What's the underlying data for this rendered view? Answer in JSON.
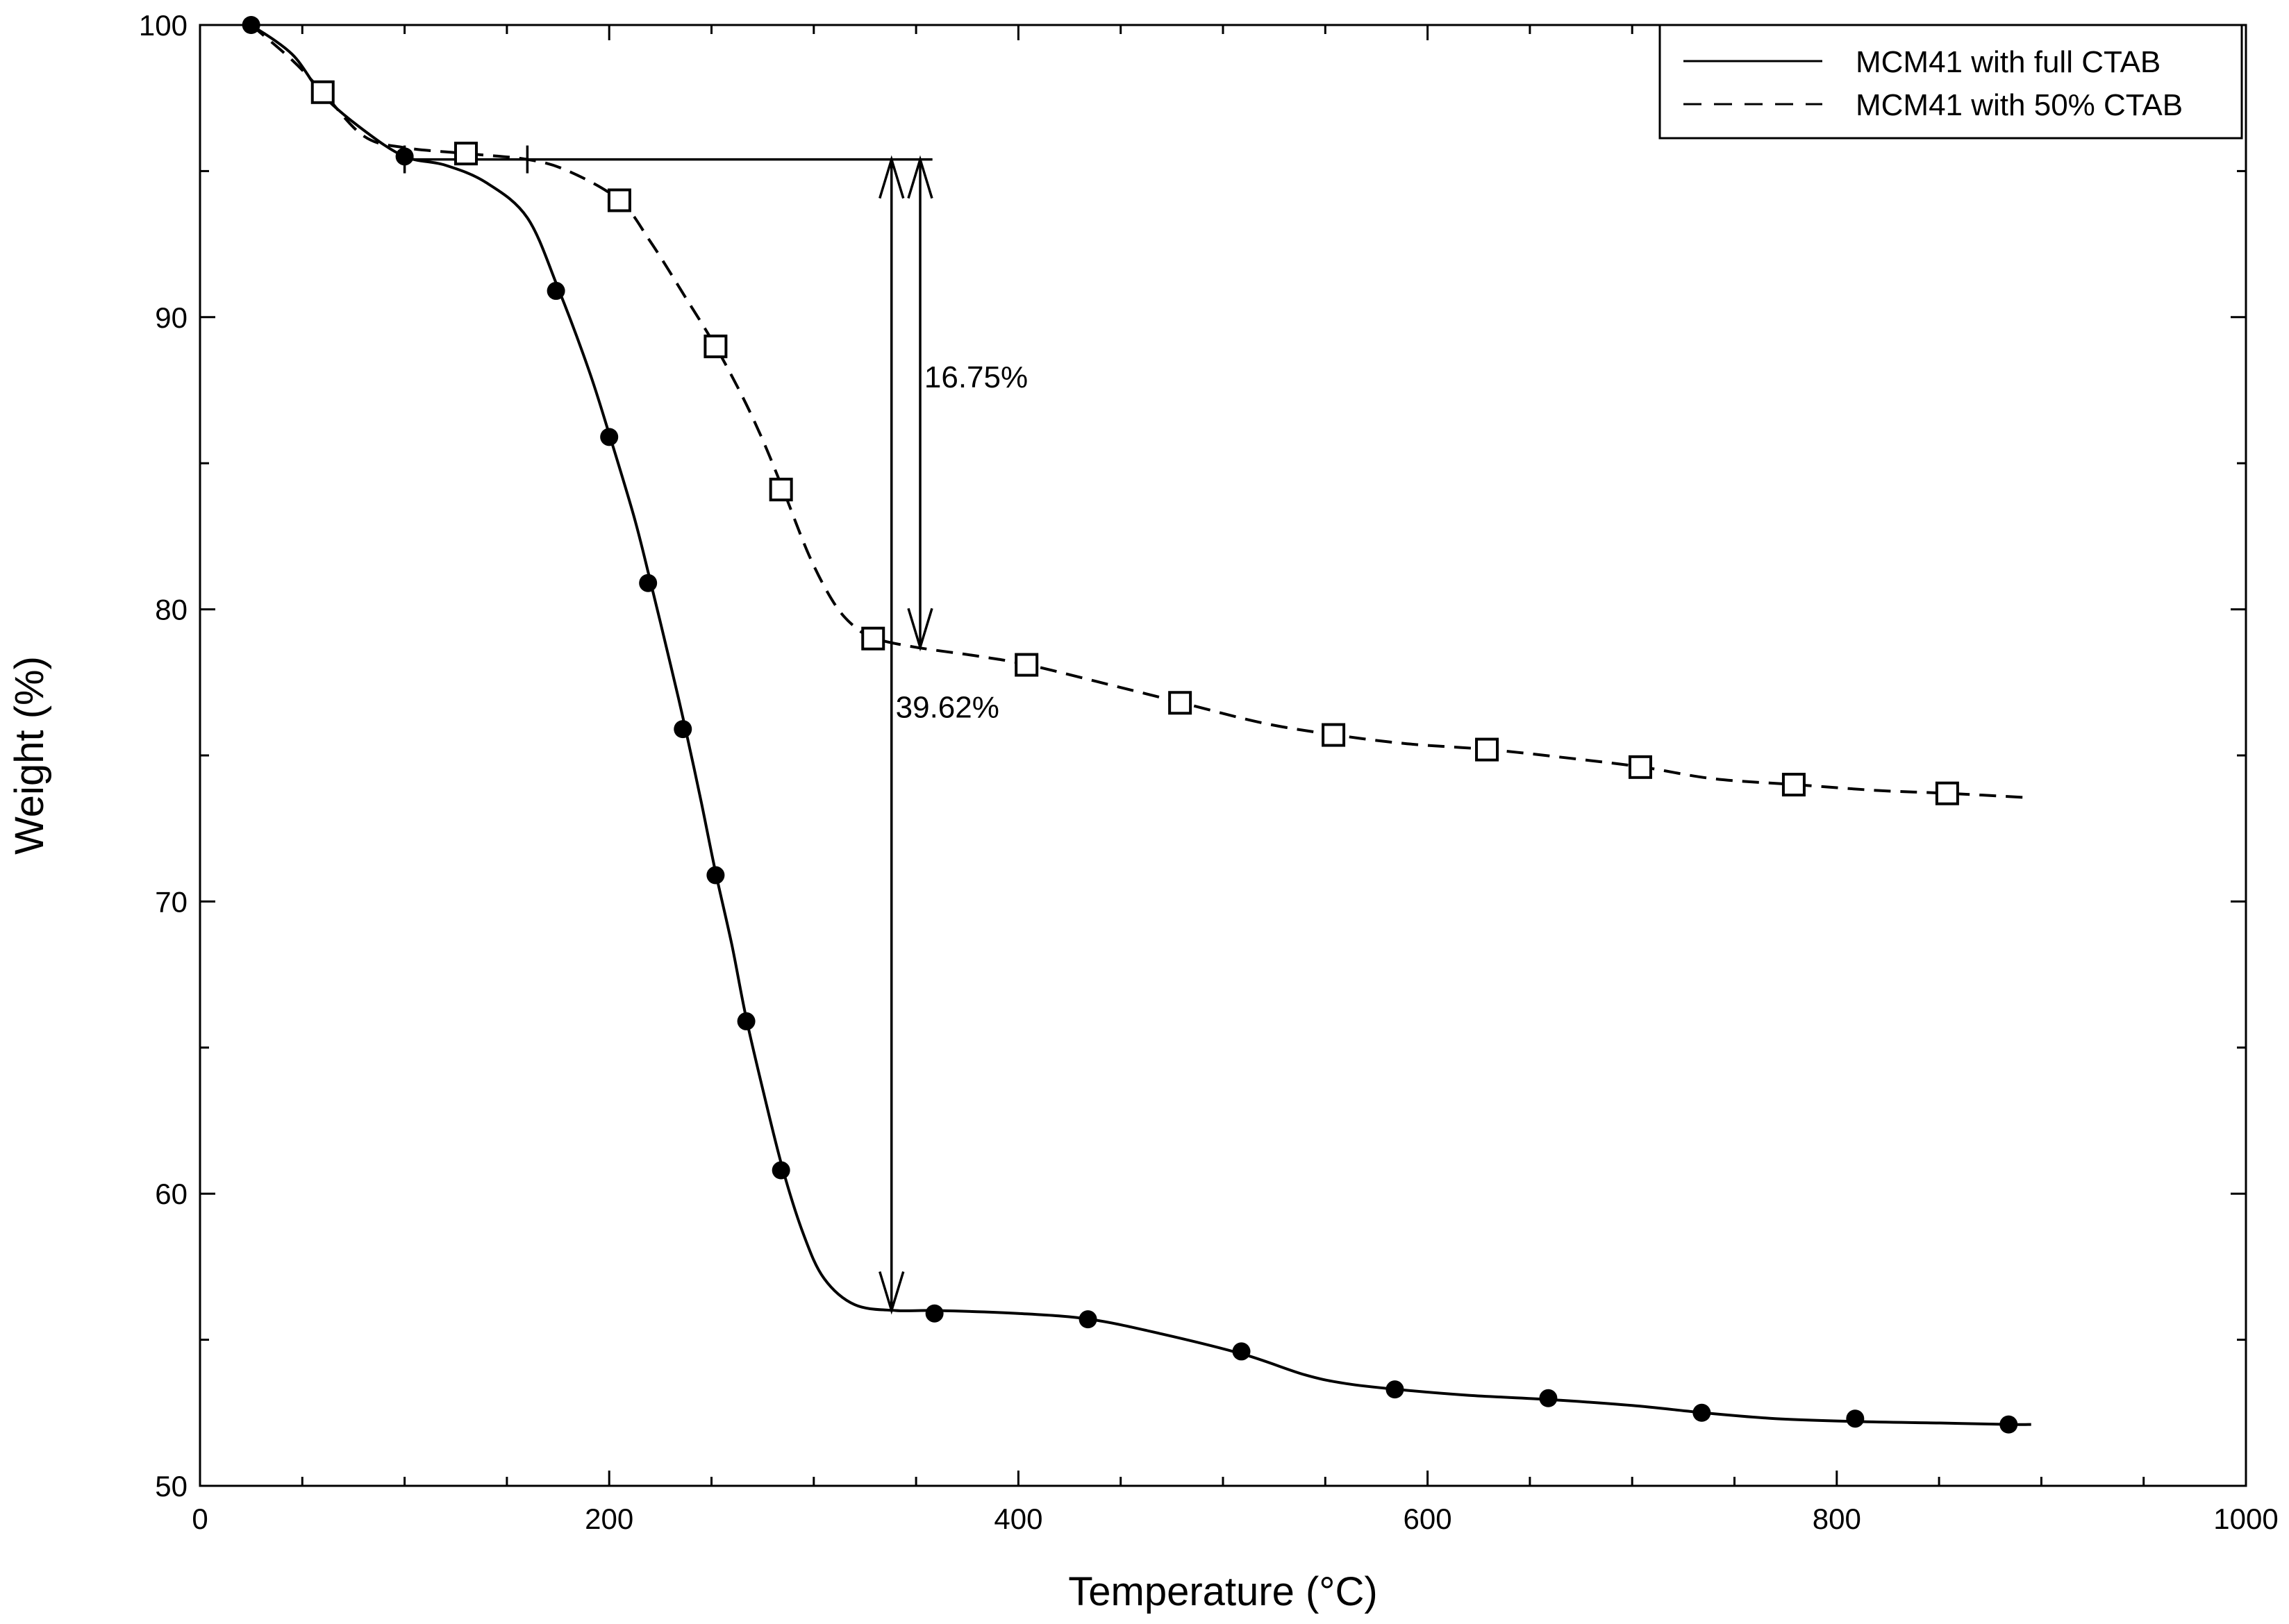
{
  "chart_data": {
    "type": "line",
    "title": "",
    "xlabel": "Temperature (°C)",
    "ylabel": "Weight (%)",
    "xlim": [
      0,
      1000
    ],
    "ylim": [
      50,
      100
    ],
    "xticks": [
      0,
      200,
      400,
      600,
      800,
      1000
    ],
    "yticks": [
      50,
      60,
      70,
      80,
      90,
      100
    ],
    "xticks_minor_step": 50,
    "yticks_minor_step": 5,
    "grid": false,
    "legend_position": "top-right",
    "series": [
      {
        "name": "MCM41 with full CTAB",
        "style": "solid",
        "marker": "filled-circle",
        "color": "#000000",
        "curve": [
          [
            25,
            100
          ],
          [
            45,
            99
          ],
          [
            60,
            97.6
          ],
          [
            80,
            96.4
          ],
          [
            100,
            95.5
          ],
          [
            120,
            95.2
          ],
          [
            140,
            94.6
          ],
          [
            160,
            93.4
          ],
          [
            175,
            91.0
          ],
          [
            190,
            88.2
          ],
          [
            200,
            86.0
          ],
          [
            212,
            83.2
          ],
          [
            220,
            81.0
          ],
          [
            230,
            78.1
          ],
          [
            237,
            76.0
          ],
          [
            245,
            73.4
          ],
          [
            252,
            71.0
          ],
          [
            260,
            68.5
          ],
          [
            267,
            66.0
          ],
          [
            276,
            63.3
          ],
          [
            285,
            60.8
          ],
          [
            295,
            58.6
          ],
          [
            305,
            57.1
          ],
          [
            320,
            56.2
          ],
          [
            340,
            56.0
          ],
          [
            360,
            56.0
          ],
          [
            400,
            55.9
          ],
          [
            435,
            55.7
          ],
          [
            470,
            55.2
          ],
          [
            510,
            54.5
          ],
          [
            540,
            53.8
          ],
          [
            560,
            53.5
          ],
          [
            585,
            53.3
          ],
          [
            620,
            53.1
          ],
          [
            660,
            52.95
          ],
          [
            700,
            52.75
          ],
          [
            735,
            52.5
          ],
          [
            770,
            52.3
          ],
          [
            810,
            52.2
          ],
          [
            850,
            52.15
          ],
          [
            885,
            52.1
          ],
          [
            895,
            52.1
          ]
        ],
        "markers": [
          [
            25,
            100
          ],
          [
            100,
            95.5
          ],
          [
            174,
            90.9
          ],
          [
            200,
            85.9
          ],
          [
            219,
            80.9
          ],
          [
            236,
            75.9
          ],
          [
            252,
            70.9
          ],
          [
            267,
            65.9
          ],
          [
            284,
            60.8
          ],
          [
            359,
            55.9
          ],
          [
            434,
            55.7
          ],
          [
            509,
            54.6
          ],
          [
            584,
            53.3
          ],
          [
            659,
            53.0
          ],
          [
            734,
            52.5
          ],
          [
            809,
            52.3
          ],
          [
            884,
            52.1
          ]
        ]
      },
      {
        "name": "MCM41 with 50% CTAB",
        "style": "dashed",
        "marker": "open-square",
        "color": "#000000",
        "curve": [
          [
            25,
            100
          ],
          [
            45,
            98.8
          ],
          [
            60,
            97.7
          ],
          [
            80,
            96.2
          ],
          [
            100,
            95.8
          ],
          [
            130,
            95.6
          ],
          [
            160,
            95.4
          ],
          [
            180,
            95.0
          ],
          [
            205,
            94.0
          ],
          [
            220,
            92.6
          ],
          [
            238,
            90.6
          ],
          [
            252,
            89.0
          ],
          [
            265,
            87.3
          ],
          [
            275,
            85.8
          ],
          [
            285,
            84.1
          ],
          [
            298,
            81.8
          ],
          [
            310,
            80.2
          ],
          [
            320,
            79.4
          ],
          [
            330,
            79.0
          ],
          [
            350,
            78.7
          ],
          [
            380,
            78.4
          ],
          [
            405,
            78.1
          ],
          [
            440,
            77.5
          ],
          [
            480,
            76.8
          ],
          [
            520,
            76.1
          ],
          [
            555,
            75.7
          ],
          [
            590,
            75.4
          ],
          [
            630,
            75.2
          ],
          [
            670,
            74.9
          ],
          [
            705,
            74.6
          ],
          [
            740,
            74.2
          ],
          [
            780,
            74.0
          ],
          [
            820,
            73.8
          ],
          [
            855,
            73.7
          ],
          [
            895,
            73.55
          ]
        ],
        "markers": [
          [
            60,
            97.7
          ],
          [
            130,
            95.6
          ],
          [
            205,
            94.0
          ],
          [
            252,
            89.0
          ],
          [
            284,
            84.1
          ],
          [
            329,
            79.0
          ],
          [
            404,
            78.1
          ],
          [
            479,
            76.8
          ],
          [
            554,
            75.7
          ],
          [
            629,
            75.2
          ],
          [
            704,
            74.6
          ],
          [
            779,
            74.0
          ],
          [
            854,
            73.7
          ]
        ]
      }
    ],
    "annotations": [
      {
        "type": "horizontal-line",
        "x": [
          100,
          358
        ],
        "y": 95.4
      },
      {
        "type": "tick-mark",
        "x": 100,
        "y": 95.4
      },
      {
        "type": "tick-mark",
        "x": 160,
        "y": 95.4
      },
      {
        "type": "double-arrow",
        "x": 338,
        "y": [
          95.4,
          56.0
        ],
        "label": "39.62%",
        "label_at": [
          340,
          76.3
        ]
      },
      {
        "type": "double-arrow",
        "x": 352,
        "y": [
          95.4,
          78.7
        ],
        "label": "16.75%",
        "label_at": [
          354,
          87.6
        ]
      }
    ]
  }
}
